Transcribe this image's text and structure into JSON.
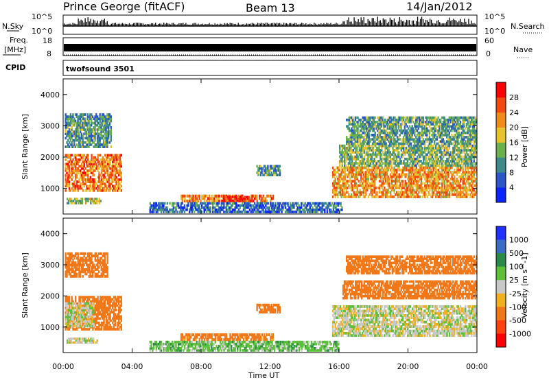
{
  "header": {
    "station": "Prince George (fitACF)",
    "beam": "Beam 13",
    "date": "14/Jan/2012"
  },
  "strip_labels": {
    "nsky": "N.Sky",
    "nsearch": "N.Search",
    "freq_line1": "Freq.",
    "freq_line2": "[MHz]",
    "cpid": "CPID",
    "nave": "Nave",
    "cpid_value": "twofsound 3501"
  },
  "strip_ticks": {
    "noise_top": "10^5",
    "noise_bottom": "10^0",
    "noise_right_top": "10^5",
    "noise_right_bottom": "10^0",
    "freq_top": "18",
    "freq_bottom": "8",
    "nave_top": "60",
    "nave_bottom": "0"
  },
  "colors": {
    "background": "#ffffff",
    "axis": "#000000",
    "power_scale": [
      "#0b24ff",
      "#2a56c8",
      "#3d8a8a",
      "#6ab04c",
      "#e9c32e",
      "#f08a1c",
      "#f04a10",
      "#ff0000"
    ],
    "velocity_scale": [
      "#2030ff",
      "#3a6cc6",
      "#2a8a4a",
      "#5cc03a",
      "#c8c8c8",
      "#f0b020",
      "#f07818",
      "#ff4010",
      "#ff0000"
    ]
  },
  "chart_data": [
    {
      "type": "heatmap",
      "panel": "power",
      "ylabel": "Slant Range [km]",
      "colorbar_label": "Power [dB]",
      "colorbar_ticks": [
        "4",
        "8",
        "12",
        "16",
        "20",
        "24",
        "28"
      ],
      "x_ticks": [
        "00:00",
        "04:00",
        "08:00",
        "12:00",
        "16:00",
        "20:00",
        "00:00"
      ],
      "y_ticks": [
        "1000",
        "2000",
        "3000",
        "4000"
      ],
      "xlim_hours": [
        0,
        24
      ],
      "ylim_km": [
        180,
        4500
      ],
      "clim": [
        0,
        30
      ],
      "blobs": [
        {
          "t0": 0.1,
          "t1": 3.4,
          "r0": 900,
          "r1": 2100,
          "v": 22
        },
        {
          "t0": 0.1,
          "t1": 2.8,
          "r0": 2300,
          "r1": 3400,
          "v": 10
        },
        {
          "t0": 0.2,
          "t1": 2.2,
          "r0": 500,
          "r1": 700,
          "v": 14
        },
        {
          "t0": 6.8,
          "t1": 12.2,
          "r0": 560,
          "r1": 800,
          "v": 22
        },
        {
          "t0": 9.2,
          "t1": 10.8,
          "r0": 580,
          "r1": 760,
          "v": 27
        },
        {
          "t0": 5.0,
          "t1": 16.2,
          "r0": 220,
          "r1": 560,
          "v": 7
        },
        {
          "t0": 11.2,
          "t1": 12.6,
          "r0": 1400,
          "r1": 1750,
          "v": 10
        },
        {
          "t0": 15.6,
          "t1": 24.0,
          "r0": 700,
          "r1": 1700,
          "v": 20
        },
        {
          "t0": 16.0,
          "t1": 24.0,
          "r0": 1700,
          "r1": 2400,
          "v": 13
        },
        {
          "t0": 16.4,
          "t1": 24.0,
          "r0": 2400,
          "r1": 3300,
          "v": 11
        }
      ]
    },
    {
      "type": "heatmap",
      "panel": "velocity",
      "ylabel": "Slant Range [km]",
      "xlabel": "Time UT",
      "colorbar_label": "Velocity [m s^-1]",
      "colorbar_ticks": [
        "1000",
        "500",
        "100",
        "25",
        "-25",
        "-100",
        "-500",
        "-1000"
      ],
      "x_ticks": [
        "00:00",
        "04:00",
        "08:00",
        "12:00",
        "16:00",
        "20:00",
        "00:00"
      ],
      "y_ticks": [
        "1000",
        "2000",
        "3000",
        "4000"
      ],
      "xlim_hours": [
        0,
        24
      ],
      "ylim_km": [
        180,
        4500
      ],
      "blobs": [
        {
          "t0": 0.1,
          "t1": 3.4,
          "r0": 900,
          "r1": 2000,
          "v": -200
        },
        {
          "t0": 0.1,
          "t1": 1.8,
          "r0": 1000,
          "r1": 1800,
          "v": 0
        },
        {
          "t0": 0.1,
          "t1": 2.6,
          "r0": 2600,
          "r1": 3400,
          "v": -300
        },
        {
          "t0": 0.2,
          "t1": 2.0,
          "r0": 480,
          "r1": 660,
          "v": 0
        },
        {
          "t0": 6.8,
          "t1": 12.2,
          "r0": 560,
          "r1": 800,
          "v": -150
        },
        {
          "t0": 5.0,
          "t1": 16.0,
          "r0": 220,
          "r1": 560,
          "v": 60
        },
        {
          "t0": 11.2,
          "t1": 12.6,
          "r0": 1450,
          "r1": 1750,
          "v": -200
        },
        {
          "t0": 15.6,
          "t1": 24.0,
          "r0": 700,
          "r1": 1700,
          "v": 0
        },
        {
          "t0": 16.2,
          "t1": 24.0,
          "r0": 1900,
          "r1": 2500,
          "v": -250
        },
        {
          "t0": 16.4,
          "t1": 24.0,
          "r0": 2700,
          "r1": 3300,
          "v": -300
        }
      ]
    }
  ]
}
